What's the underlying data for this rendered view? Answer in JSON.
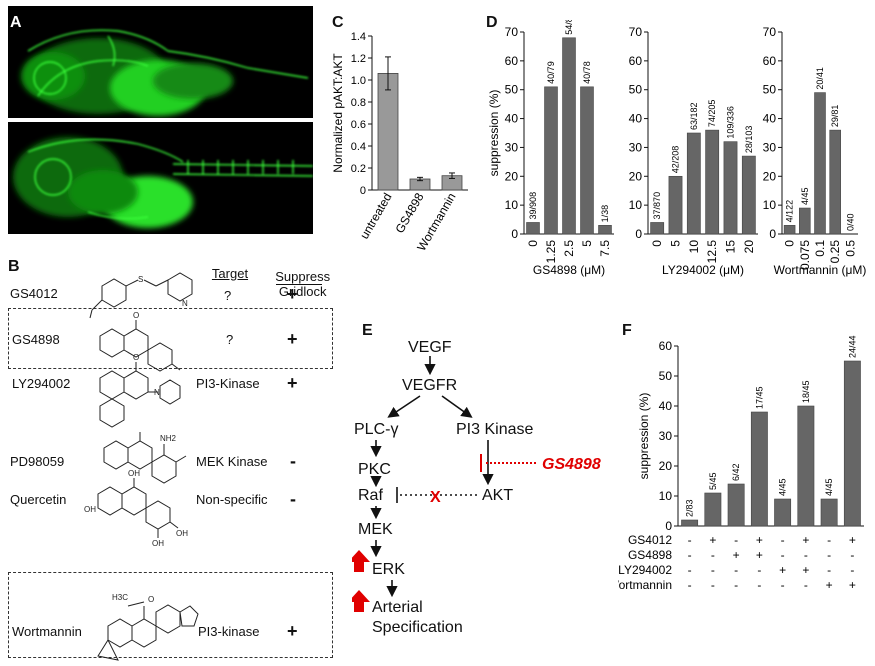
{
  "panel_labels": {
    "A": "A",
    "B": "B",
    "C": "C",
    "D": "D",
    "E": "E",
    "F": "F"
  },
  "panelB": {
    "headers": {
      "target": "Target",
      "suppress": "Suppress\nGridlock"
    },
    "rows": [
      {
        "name": "GS4012",
        "target": "?",
        "sign": "+"
      },
      {
        "name": "GS4898",
        "target": "?",
        "sign": "+"
      },
      {
        "name": "LY294002",
        "target": "PI3-Kinase",
        "sign": "+"
      },
      {
        "name": "PD98059",
        "target": "MEK Kinase",
        "sign": "-"
      },
      {
        "name": "Quercetin",
        "target": "Non-specific",
        "sign": "-"
      },
      {
        "name": "Wortmannin",
        "target": "PI3-kinase",
        "sign": "+"
      }
    ],
    "structure_text": {
      "s": "S",
      "n": "N",
      "o": "O",
      "nh2": "NH2",
      "oh": "OH",
      "h3c": "H3C"
    }
  },
  "chart_data": [
    {
      "panel": "C",
      "type": "bar",
      "ylabel": "Normalized pAKT:AKT",
      "categories": [
        "untreated",
        "GS4898",
        "Wortmannin"
      ],
      "values": [
        1.06,
        0.1,
        0.13
      ],
      "errors": [
        0.15,
        0.015,
        0.025
      ],
      "ylim": [
        0,
        1.4
      ],
      "yticks": [
        "0",
        "0.2",
        "0.4",
        "0.6",
        "0.8",
        "1.0",
        "1.2",
        "1.4"
      ],
      "yticks_num": [
        0,
        0.2,
        0.4,
        0.6,
        0.8,
        1.0,
        1.2,
        1.4
      ],
      "color": "#999999"
    },
    {
      "panel": "D",
      "type": "bar",
      "ylabel": "suppression (%)",
      "ylim": [
        0,
        70
      ],
      "yticks": [
        0,
        10,
        20,
        30,
        40,
        50,
        60,
        70
      ],
      "color": "#666666",
      "groups": [
        {
          "xlabel": "GS4898 (μM)",
          "categories": [
            "0",
            "1.25",
            "2.5",
            "5",
            "7.5"
          ],
          "values": [
            4,
            51,
            68,
            51,
            3
          ],
          "labels": [
            "39/908",
            "40/79",
            "54/80",
            "40/78",
            "1/38"
          ]
        },
        {
          "xlabel": "LY294002 (μM)",
          "categories": [
            "0",
            "5",
            "10",
            "12.5",
            "15",
            "20"
          ],
          "values": [
            4,
            20,
            35,
            36,
            32,
            27
          ],
          "labels": [
            "37/870",
            "42/208",
            "63/182",
            "74/205",
            "109/336",
            "28/103"
          ]
        },
        {
          "xlabel": "Wortmannin (μM)",
          "categories": [
            "0",
            "0.075",
            "0.1",
            "0.25",
            "0.5"
          ],
          "values": [
            3,
            9,
            49,
            36,
            0
          ],
          "labels": [
            "4/122",
            "4/45",
            "20/41",
            "29/81",
            "0/40"
          ]
        }
      ]
    },
    {
      "panel": "F",
      "type": "bar",
      "ylabel": "suppression (%)",
      "ylim": [
        0,
        60
      ],
      "yticks": [
        0,
        10,
        20,
        30,
        40,
        50,
        60
      ],
      "color": "#666666",
      "values": [
        2,
        11,
        14,
        38,
        9,
        40,
        9,
        55
      ],
      "labels": [
        "2/83",
        "5/45",
        "6/42",
        "17/45",
        "4/45",
        "18/45",
        "4/45",
        "24/44"
      ],
      "rows": [
        {
          "name": "GS4012",
          "signs": [
            "-",
            "+",
            "-",
            "+",
            "-",
            "+",
            "-",
            "+"
          ]
        },
        {
          "name": "GS4898",
          "signs": [
            "-",
            "-",
            "+",
            "+",
            "-",
            "-",
            "-",
            "-"
          ]
        },
        {
          "name": "LY294002",
          "signs": [
            "-",
            "-",
            "-",
            "-",
            "+",
            "+",
            "-",
            "-"
          ]
        },
        {
          "name": "Wortmannin",
          "signs": [
            "-",
            "-",
            "-",
            "-",
            "-",
            "-",
            "+",
            "+"
          ]
        }
      ]
    }
  ],
  "pathway": {
    "vegf": "VEGF",
    "vegfr": "VEGFR",
    "plc": "PLC-γ",
    "pi3k": "PI3 Kinase",
    "pkc": "PKC",
    "raf": "Raf",
    "akt": "AKT",
    "mek": "MEK",
    "erk": "ERK",
    "arterial": "Arterial",
    "specification": "Specification",
    "gs4898": "GS4898",
    "x": "X",
    "accent": "#e00000"
  }
}
